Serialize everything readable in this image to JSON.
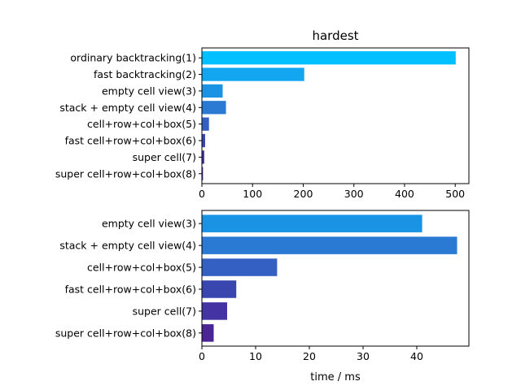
{
  "chart_data": [
    {
      "type": "bar",
      "orientation": "horizontal",
      "title": "hardest",
      "xlabel": "",
      "ylabel": "",
      "categories": [
        "ordinary backtracking(1)",
        "fast backtracking(2)",
        "empty cell view(3)",
        "stack + empty cell view(4)",
        "cell+row+col+box(5)",
        "fast cell+row+col+box(6)",
        "super cell(7)",
        "super cell+row+col+box(8)"
      ],
      "values": [
        501,
        202,
        41,
        47.5,
        14,
        6.4,
        4.7,
        2.2
      ],
      "colors": [
        "#00c0ff",
        "#12a6f0",
        "#1b93e5",
        "#2a7ad3",
        "#3360c2",
        "#3a46b0",
        "#4433a3",
        "#4b2495"
      ],
      "xlim": [
        0,
        527
      ],
      "xticks": [
        0,
        100,
        200,
        300,
        400,
        500
      ],
      "grid": false,
      "legend": false
    },
    {
      "type": "bar",
      "orientation": "horizontal",
      "title": "",
      "xlabel": "time / ms",
      "ylabel": "",
      "categories": [
        "empty cell view(3)",
        "stack + empty cell view(4)",
        "cell+row+col+box(5)",
        "fast cell+row+col+box(6)",
        "super cell(7)",
        "super cell+row+col+box(8)"
      ],
      "values": [
        41,
        47.5,
        14,
        6.4,
        4.7,
        2.2
      ],
      "colors": [
        "#1b93e5",
        "#2a7ad3",
        "#3360c2",
        "#3a46b0",
        "#4433a3",
        "#4b2495"
      ],
      "xlim": [
        0,
        49.7
      ],
      "xticks": [
        0,
        10,
        20,
        30,
        40
      ],
      "grid": false,
      "legend": false
    }
  ]
}
